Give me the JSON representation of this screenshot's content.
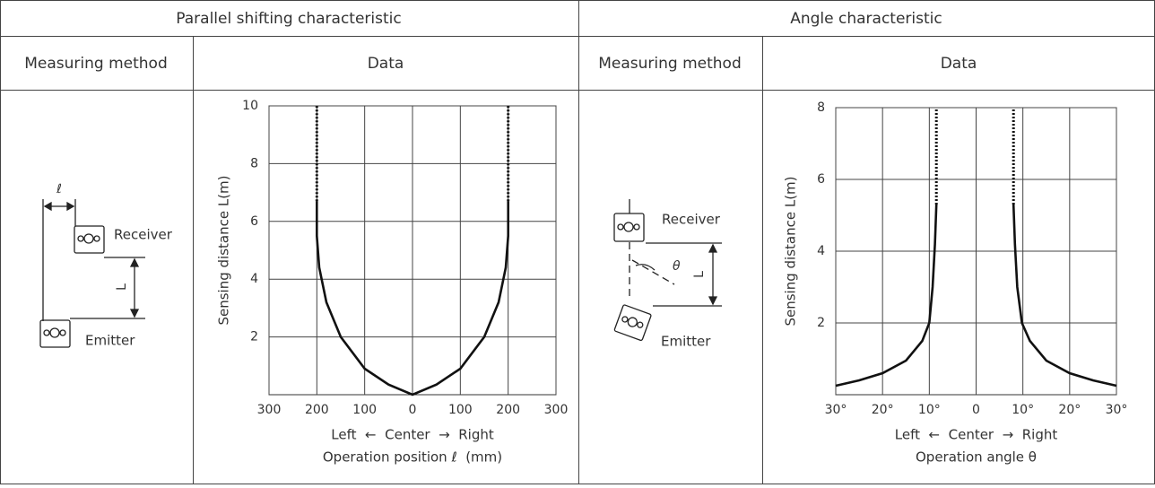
{
  "table": {
    "headers": [
      "Parallel shifting characteristic",
      "Angle characteristic"
    ],
    "subheaders": [
      "Measuring method",
      "Data",
      "Measuring method",
      "Data"
    ]
  },
  "diagrams": [
    {
      "offset_label": "ℓ",
      "receiver": "Receiver",
      "emitter": "Emitter",
      "distance_label": "L"
    },
    {
      "angle_label": "θ",
      "receiver": "Receiver",
      "emitter": "Emitter",
      "distance_label": "L"
    }
  ],
  "chart_data": [
    {
      "type": "line",
      "ylabel": "Sensing distance L(m)",
      "xlabel_lines": [
        "Left  ←  Center  →  Right",
        "Operation position ℓ  (mm)"
      ],
      "xlim": [
        -300,
        300
      ],
      "ylim": [
        0,
        10
      ],
      "xticks": [
        {
          "value": -300,
          "label": "300"
        },
        {
          "value": -200,
          "label": "200"
        },
        {
          "value": -100,
          "label": "100"
        },
        0,
        100,
        200,
        300
      ],
      "yticks": [
        2,
        4,
        6,
        8,
        10
      ],
      "grid": true,
      "series": [
        {
          "color": "#111",
          "style": "solid",
          "x": [
            -200,
            -200,
            -195,
            -180,
            -150,
            -100,
            -50,
            0,
            50,
            100,
            150,
            180,
            195,
            200,
            200
          ],
          "values": [
            6.7,
            5.5,
            4.4,
            3.2,
            2.0,
            0.9,
            0.35,
            0,
            0.35,
            0.9,
            2.0,
            3.2,
            4.4,
            5.5,
            6.7
          ]
        },
        {
          "color": "#111",
          "style": "dotted",
          "x": [
            -200,
            -200
          ],
          "values": [
            6.7,
            10
          ]
        },
        {
          "color": "#111",
          "style": "dotted",
          "x": [
            200,
            200
          ],
          "values": [
            6.7,
            10
          ]
        }
      ]
    },
    {
      "type": "line",
      "ylabel": "Sensing distance L(m)",
      "xlabel_lines": [
        "Left  ←  Center  →  Right",
        "Operation angle θ"
      ],
      "xlim": [
        -30,
        30
      ],
      "ylim": [
        0,
        8
      ],
      "xticks": [
        {
          "value": -30,
          "label": "30°"
        },
        {
          "value": -20,
          "label": "20°"
        },
        {
          "value": -10,
          "label": "10°"
        },
        0,
        {
          "value": 10,
          "label": "10°"
        },
        {
          "value": 20,
          "label": "20°"
        },
        {
          "value": 30,
          "label": "30°"
        }
      ],
      "yticks": [
        2,
        4,
        6,
        8
      ],
      "grid": true,
      "series": [
        {
          "color": "#111",
          "style": "solid",
          "x": [
            -30,
            -25,
            -20,
            -15,
            -11.5,
            -10,
            -9.3,
            -8.8,
            -8.5
          ],
          "values": [
            0.25,
            0.4,
            0.6,
            0.95,
            1.5,
            2.0,
            3.0,
            4.2,
            5.3
          ]
        },
        {
          "color": "#111",
          "style": "solid",
          "x": [
            8,
            8.3,
            8.8,
            9.8,
            11.5,
            15,
            20,
            25,
            30
          ],
          "values": [
            5.3,
            4.2,
            3.0,
            2.0,
            1.5,
            0.95,
            0.6,
            0.4,
            0.25
          ]
        },
        {
          "color": "#111",
          "style": "dotted",
          "x": [
            -8.5,
            -8.5
          ],
          "values": [
            5.3,
            8
          ]
        },
        {
          "color": "#111",
          "style": "dotted",
          "x": [
            8,
            8
          ],
          "values": [
            5.3,
            8
          ]
        }
      ]
    }
  ]
}
